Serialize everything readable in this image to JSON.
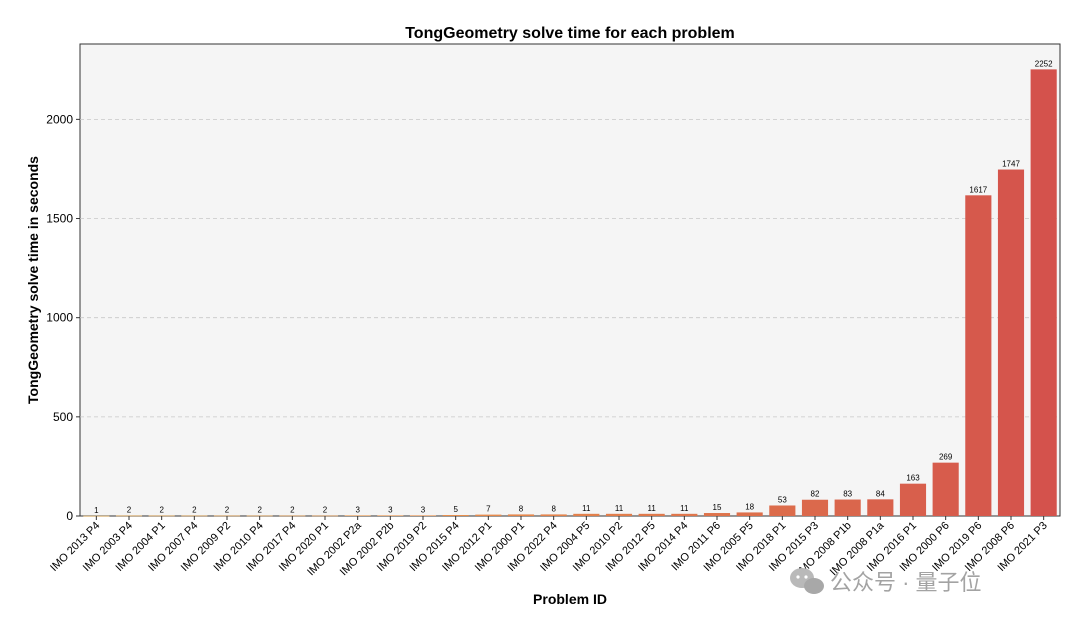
{
  "chart_data": {
    "type": "bar",
    "title": "TongGeometry solve time for each problem",
    "xlabel": "Problem ID",
    "ylabel": "TongGeometry solve time in seconds",
    "ylim": [
      0,
      2380
    ],
    "yticks": [
      0,
      500,
      1000,
      1500,
      2000
    ],
    "grid": "y-dashed",
    "categories": [
      "IMO 2013 P4",
      "IMO 2003 P4",
      "IMO 2004 P1",
      "IMO 2007 P4",
      "IMO 2009 P2",
      "IMO 2010 P4",
      "IMO 2017 P4",
      "IMO 2020 P1",
      "IMO 2002 P2a",
      "IMO 2002 P2b",
      "IMO 2019 P2",
      "IMO 2015 P4",
      "IMO 2012 P1",
      "IMO 2000 P1",
      "IMO 2022 P4",
      "IMO 2004 P5",
      "IMO 2010 P2",
      "IMO 2012 P5",
      "IMO 2014 P4",
      "IMO 2011 P6",
      "IMO 2005 P5",
      "IMO 2018 P1",
      "IMO 2015 P3",
      "IMO 2008 P1b",
      "IMO 2008 P1a",
      "IMO 2016 P1",
      "IMO 2000 P6",
      "IMO 2019 P6",
      "IMO 2008 P6",
      "IMO 2021 P3"
    ],
    "values": [
      1,
      2,
      2,
      2,
      2,
      2,
      2,
      2,
      3,
      3,
      3,
      5,
      7,
      8,
      8,
      11,
      11,
      11,
      11,
      15,
      18,
      53,
      82,
      83,
      84,
      163,
      269,
      1617,
      1747,
      2252
    ],
    "colors": {
      "low": "#f2b14a",
      "high": "#d4524c",
      "background": "#f5f5f5"
    }
  },
  "watermark": {
    "text": "公众号 · 量子位",
    "icon": "wechat-icon"
  }
}
